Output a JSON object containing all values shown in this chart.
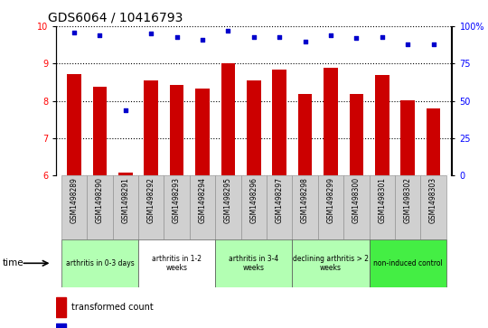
{
  "title": "GDS6064 / 10416793",
  "samples": [
    "GSM1498289",
    "GSM1498290",
    "GSM1498291",
    "GSM1498292",
    "GSM1498293",
    "GSM1498294",
    "GSM1498295",
    "GSM1498296",
    "GSM1498297",
    "GSM1498298",
    "GSM1498299",
    "GSM1498300",
    "GSM1498301",
    "GSM1498302",
    "GSM1498303"
  ],
  "bar_values": [
    8.72,
    8.37,
    6.08,
    8.55,
    8.42,
    8.33,
    9.02,
    8.54,
    8.83,
    8.18,
    8.88,
    8.19,
    8.7,
    8.02,
    7.79
  ],
  "percentile_values": [
    96,
    94,
    44,
    95,
    93,
    91,
    97,
    93,
    93,
    90,
    94,
    92,
    93,
    88,
    88
  ],
  "bar_color": "#cc0000",
  "percentile_color": "#0000cc",
  "ylim_left": [
    6,
    10
  ],
  "ylim_right": [
    0,
    100
  ],
  "yticks_left": [
    6,
    7,
    8,
    9,
    10
  ],
  "yticks_right": [
    0,
    25,
    50,
    75,
    100
  ],
  "ytick_labels_right": [
    "0",
    "25",
    "50",
    "75",
    "100%"
  ],
  "groups": [
    {
      "label": "arthritis in 0-3 days",
      "start": 0,
      "end": 3,
      "color": "#b3ffb3"
    },
    {
      "label": "arthritis in 1-2\nweeks",
      "start": 3,
      "end": 6,
      "color": "#ffffff"
    },
    {
      "label": "arthritis in 3-4\nweeks",
      "start": 6,
      "end": 9,
      "color": "#b3ffb3"
    },
    {
      "label": "declining arthritis > 2\nweeks",
      "start": 9,
      "end": 12,
      "color": "#b3ffb3"
    },
    {
      "label": "non-induced control",
      "start": 12,
      "end": 15,
      "color": "#44ee44"
    }
  ],
  "xlabel": "time",
  "title_fontsize": 10,
  "tick_fontsize": 7,
  "bar_width": 0.55,
  "n_samples": 15
}
